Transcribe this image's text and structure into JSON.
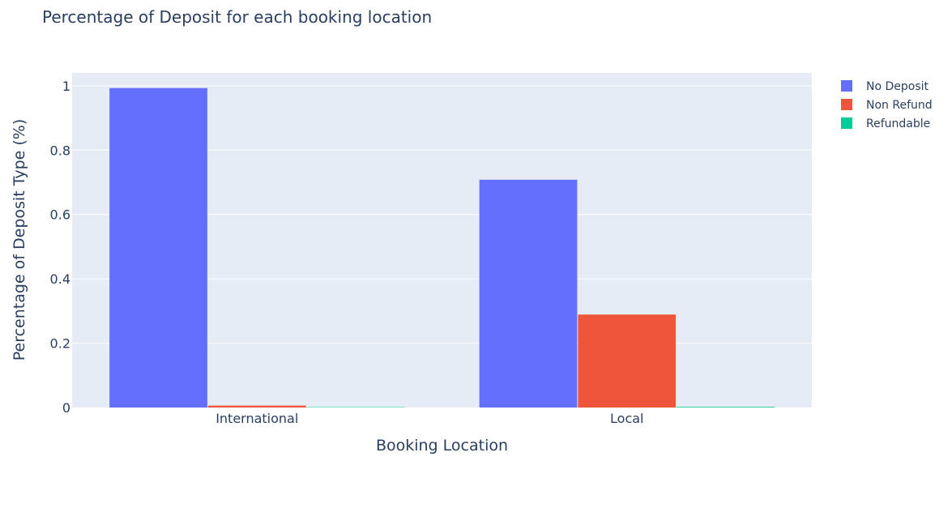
{
  "chart_data": {
    "type": "bar",
    "title": "Percentage of Deposit for each booking location",
    "xlabel": "Booking Location",
    "ylabel": "Percentage of Deposit Type (%)",
    "categories": [
      "International",
      "Local"
    ],
    "series": [
      {
        "name": "No Deposit",
        "values": [
          0.993,
          0.708
        ],
        "color": "#636efa"
      },
      {
        "name": "Non Refund",
        "values": [
          0.006,
          0.289
        ],
        "color": "#ef553b"
      },
      {
        "name": "Refundable",
        "values": [
          0.001,
          0.002
        ],
        "color": "#00cc96"
      }
    ],
    "ylim": [
      0,
      1.04
    ],
    "yticks": [
      0,
      0.2,
      0.4,
      0.6,
      0.8,
      1
    ],
    "ytick_labels": [
      "0",
      "0.2",
      "0.4",
      "0.6",
      "0.8",
      "1"
    ],
    "grid": true,
    "legend_position": "top-right",
    "plot_bg": "#e5ecf6"
  }
}
